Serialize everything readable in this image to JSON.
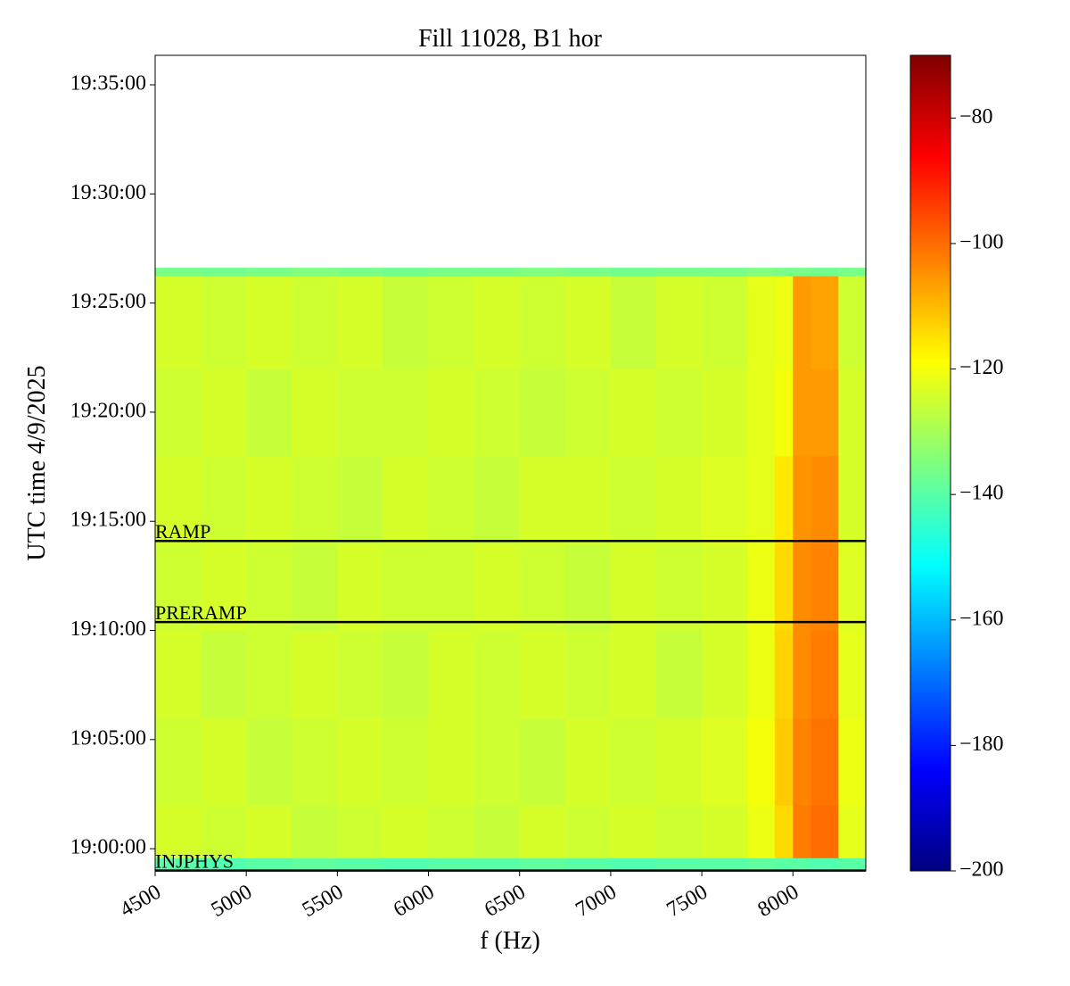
{
  "chart_data": {
    "type": "heatmap",
    "title": "Fill 11028, B1 hor",
    "x_label": "f (Hz)",
    "y_label": "UTC time 4/9/2025",
    "x_edges": [
      4500,
      4750,
      5000,
      5250,
      5500,
      5750,
      6000,
      6250,
      6500,
      6750,
      7000,
      7250,
      7500,
      7750,
      7900,
      8000,
      8100,
      8250,
      8400
    ],
    "y_edges": [
      "18:59:00",
      "18:59:35",
      "19:02:00",
      "19:06:00",
      "19:10:00",
      "19:14:00",
      "19:18:00",
      "19:22:00",
      "19:26:15",
      "19:26:37"
    ],
    "z": [
      [
        -140,
        -141,
        -140,
        -139,
        -140,
        -141,
        -140,
        -140,
        -139,
        -140,
        -141,
        -140,
        -140,
        -139,
        -140,
        -140,
        -141,
        -140
      ],
      [
        -124,
        -125,
        -124,
        -126,
        -125,
        -124,
        -125,
        -126,
        -124,
        -125,
        -124,
        -125,
        -124,
        -121,
        -114,
        -102,
        -100,
        -122
      ],
      [
        -125,
        -124,
        -126,
        -125,
        -124,
        -125,
        -124,
        -125,
        -126,
        -124,
        -125,
        -124,
        -123,
        -120,
        -112,
        -103,
        -101,
        -121
      ],
      [
        -124,
        -126,
        -125,
        -124,
        -125,
        -126,
        -124,
        -125,
        -124,
        -125,
        -124,
        -126,
        -124,
        -121,
        -113,
        -104,
        -102,
        -122
      ],
      [
        -125,
        -124,
        -125,
        -126,
        -124,
        -125,
        -125,
        -124,
        -125,
        -126,
        -124,
        -125,
        -124,
        -121,
        -114,
        -104,
        -103,
        -123
      ],
      [
        -124,
        -125,
        -124,
        -125,
        -126,
        -124,
        -125,
        -126,
        -124,
        -124,
        -125,
        -124,
        -123,
        -122,
        -116,
        -105,
        -104,
        -124
      ],
      [
        -125,
        -124,
        -126,
        -124,
        -125,
        -125,
        -124,
        -125,
        -126,
        -125,
        -124,
        -125,
        -124,
        -122,
        -120,
        -106,
        -106,
        -124
      ],
      [
        -124,
        -125,
        -124,
        -125,
        -124,
        -126,
        -125,
        -124,
        -125,
        -124,
        -126,
        -124,
        -125,
        -122,
        -121,
        -106,
        -107,
        -125
      ],
      [
        -136,
        -137,
        -136,
        -135,
        -136,
        -137,
        -136,
        -136,
        -135,
        -136,
        -137,
        -136,
        -136,
        -135,
        -136,
        -136,
        -137,
        -136
      ]
    ],
    "xlim": [
      4500,
      8400
    ],
    "xticks": [
      4500,
      5000,
      5500,
      6000,
      6500,
      7000,
      7500,
      8000
    ],
    "ylim": [
      "18:58:59",
      "19:36:21"
    ],
    "yticks": [
      "19:00:00",
      "19:05:00",
      "19:10:00",
      "19:15:00",
      "19:20:00",
      "19:25:00",
      "19:30:00",
      "19:35:00"
    ],
    "colormap": "jet",
    "clim": [
      -200,
      -70
    ],
    "cticks": [
      {
        "value": -80,
        "label": "−80"
      },
      {
        "value": -100,
        "label": "−100"
      },
      {
        "value": -120,
        "label": "−120"
      },
      {
        "value": -140,
        "label": "−140"
      },
      {
        "value": -160,
        "label": "−160"
      },
      {
        "value": -180,
        "label": "−180"
      },
      {
        "value": -200,
        "label": "−200"
      }
    ],
    "events": [
      {
        "name": "INJPHYS",
        "time": "18:59:00"
      },
      {
        "name": "PRERAMP",
        "time": "19:10:23"
      },
      {
        "name": "RAMP",
        "time": "19:14:06"
      }
    ]
  }
}
